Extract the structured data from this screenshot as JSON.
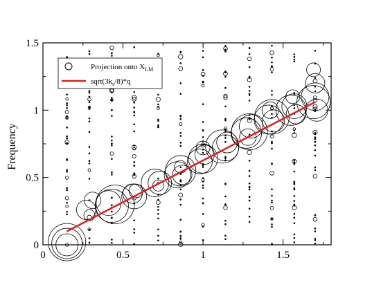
{
  "chart_data": {
    "type": "scatter",
    "title": "",
    "xlabel": "",
    "ylabel": "Frequency",
    "xlim": [
      0,
      1.8
    ],
    "ylim": [
      0,
      1.5
    ],
    "xticks": [
      0,
      0.5,
      1,
      1.5
    ],
    "yticks": [
      0,
      0.5,
      1,
      1.5
    ],
    "xtick_labels": [
      "0",
      "0.5",
      "1",
      "1.5"
    ],
    "ytick_labels": [
      "0",
      "0.5",
      "1",
      "1.5"
    ],
    "grid": false,
    "legend_position": "top-left",
    "legend": {
      "circle": {
        "text": "Projection onto X",
        "sub": "LM"
      },
      "line": {
        "text": "sqrt(3k",
        "sub": "s",
        "text_after": "/8)*q"
      }
    },
    "line_color": "#e02020",
    "line": {
      "x": [
        0.15,
        1.7
      ],
      "y": [
        0.1,
        1.06
      ]
    },
    "q_columns": [
      0.15,
      0.29,
      0.43,
      0.57,
      0.72,
      0.86,
      1.0,
      1.14,
      1.29,
      1.43,
      1.57,
      1.7
    ],
    "series": [
      {
        "marker": "open-circle",
        "points": [
          {
            "x": 0.15,
            "y": 0.0,
            "s": 16
          },
          {
            "x": 0.15,
            "y": 0.01,
            "s": 22
          },
          {
            "x": 0.15,
            "y": 0.02,
            "s": 27
          },
          {
            "x": 0.27,
            "y": 0.26,
            "s": 14
          },
          {
            "x": 0.31,
            "y": 0.33,
            "s": 12
          },
          {
            "x": 0.29,
            "y": 0.22,
            "s": 8
          },
          {
            "x": 0.41,
            "y": 0.31,
            "s": 18
          },
          {
            "x": 0.43,
            "y": 0.29,
            "s": 24
          },
          {
            "x": 0.45,
            "y": 0.3,
            "s": 28
          },
          {
            "x": 0.57,
            "y": 0.36,
            "s": 18
          },
          {
            "x": 0.56,
            "y": 0.38,
            "s": 14
          },
          {
            "x": 0.58,
            "y": 0.4,
            "s": 10
          },
          {
            "x": 0.7,
            "y": 0.46,
            "s": 20
          },
          {
            "x": 0.73,
            "y": 0.46,
            "s": 17
          },
          {
            "x": 0.72,
            "y": 0.44,
            "s": 8
          },
          {
            "x": 0.84,
            "y": 0.52,
            "s": 19
          },
          {
            "x": 0.86,
            "y": 0.55,
            "s": 22
          },
          {
            "x": 0.87,
            "y": 0.52,
            "s": 14
          },
          {
            "x": 0.86,
            "y": 0.58,
            "s": 9
          },
          {
            "x": 0.98,
            "y": 0.62,
            "s": 18
          },
          {
            "x": 1.0,
            "y": 0.64,
            "s": 21
          },
          {
            "x": 1.01,
            "y": 0.67,
            "s": 14
          },
          {
            "x": 1.0,
            "y": 0.72,
            "s": 10
          },
          {
            "x": 1.12,
            "y": 0.73,
            "s": 24
          },
          {
            "x": 1.14,
            "y": 0.72,
            "s": 19
          },
          {
            "x": 1.15,
            "y": 0.76,
            "s": 15
          },
          {
            "x": 1.27,
            "y": 0.83,
            "s": 22
          },
          {
            "x": 1.29,
            "y": 0.84,
            "s": 26
          },
          {
            "x": 1.3,
            "y": 0.88,
            "s": 17
          },
          {
            "x": 1.28,
            "y": 0.8,
            "s": 12
          },
          {
            "x": 1.41,
            "y": 0.93,
            "s": 21
          },
          {
            "x": 1.43,
            "y": 0.95,
            "s": 25
          },
          {
            "x": 1.44,
            "y": 0.92,
            "s": 16
          },
          {
            "x": 1.42,
            "y": 1.0,
            "s": 12
          },
          {
            "x": 1.55,
            "y": 1.0,
            "s": 22
          },
          {
            "x": 1.57,
            "y": 1.03,
            "s": 18
          },
          {
            "x": 1.58,
            "y": 0.97,
            "s": 14
          },
          {
            "x": 1.56,
            "y": 1.1,
            "s": 10
          },
          {
            "x": 1.69,
            "y": 1.06,
            "s": 24
          },
          {
            "x": 1.7,
            "y": 1.1,
            "s": 20
          },
          {
            "x": 1.71,
            "y": 1.0,
            "s": 16
          },
          {
            "x": 1.7,
            "y": 1.2,
            "s": 14
          },
          {
            "x": 1.69,
            "y": 1.3,
            "s": 10
          }
        ]
      }
    ]
  }
}
